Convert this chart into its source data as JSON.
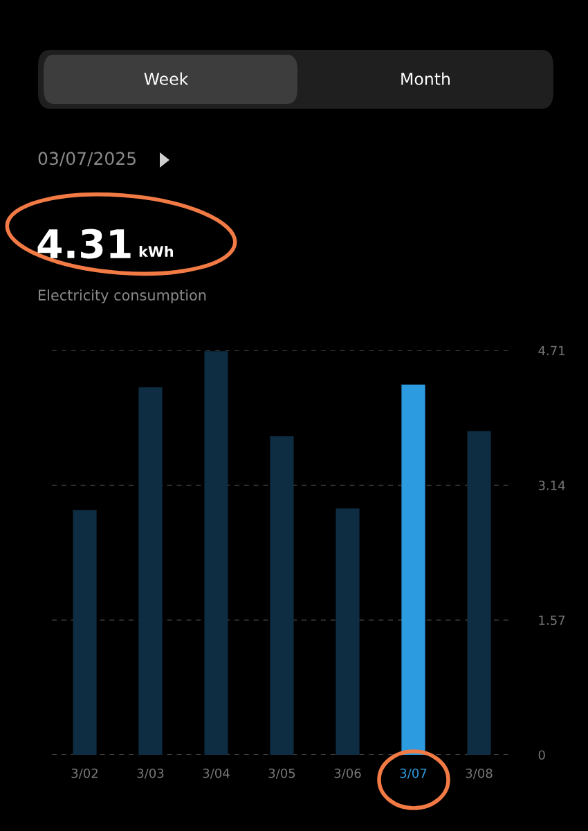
{
  "chart_data": {
    "type": "bar",
    "annotations": [
      "Week",
      "Month",
      "03/07/2025",
      "4.31",
      "kWh",
      "Electricity consumption"
    ],
    "categories": [
      "3/02",
      "3/03",
      "3/04",
      "3/05",
      "3/06",
      "3/07",
      "3/08"
    ],
    "values": [
      2.85,
      4.28,
      4.7,
      3.71,
      2.87,
      4.31,
      3.77
    ],
    "colors": [
      "#0e2c42",
      "#0e2c42",
      "#0e2c42",
      "#0e2c42",
      "#0e2c42",
      "#2d9be0",
      "#0e2c42"
    ],
    "ylim": [
      0,
      4.71
    ],
    "yticks": [
      0,
      1.57,
      3.14,
      4.71
    ],
    "grid": "y"
  }
}
